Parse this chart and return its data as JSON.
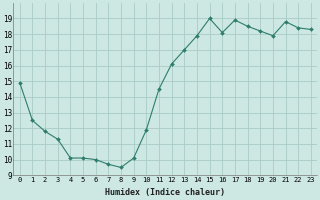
{
  "x": [
    0,
    1,
    2,
    3,
    4,
    5,
    6,
    7,
    8,
    9,
    10,
    11,
    12,
    13,
    14,
    15,
    16,
    17,
    18,
    19,
    20,
    21,
    22,
    23
  ],
  "y": [
    14.9,
    12.5,
    11.8,
    11.3,
    10.1,
    10.1,
    10.0,
    9.7,
    9.5,
    10.1,
    11.9,
    14.5,
    16.1,
    17.0,
    17.9,
    19.0,
    18.1,
    18.9,
    18.5,
    18.2,
    17.9,
    18.8,
    18.4,
    18.3
  ],
  "xlabel": "Humidex (Indice chaleur)",
  "ylim": [
    9,
    20
  ],
  "yticks": [
    9,
    10,
    11,
    12,
    13,
    14,
    15,
    16,
    17,
    18,
    19
  ],
  "xticks": [
    0,
    1,
    2,
    3,
    4,
    5,
    6,
    7,
    8,
    9,
    10,
    11,
    12,
    13,
    14,
    15,
    16,
    17,
    18,
    19,
    20,
    21,
    22,
    23
  ],
  "line_color": "#2e7d6e",
  "marker": "D",
  "marker_size": 2.0,
  "bg_color": "#cde8e2",
  "grid_color": "#aaccC6",
  "xlabel_fontsize": 6.0,
  "tick_fontsize": 5.0
}
